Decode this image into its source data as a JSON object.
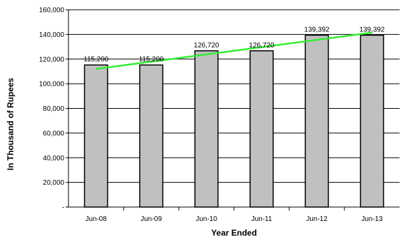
{
  "chart_data": {
    "type": "bar",
    "categories": [
      "Jun-08",
      "Jun-09",
      "Jun-10",
      "Jun-11",
      "Jun-12",
      "Jun-13"
    ],
    "values": [
      115200,
      115200,
      126720,
      126720,
      139392,
      139392
    ],
    "data_labels": [
      "115,200",
      "115,200",
      "126,720",
      "126,720",
      "139,392",
      "139,392"
    ],
    "xlabel": "Year Ended",
    "ylabel": "In Thousand of Rupees",
    "ylim": [
      0,
      160000
    ],
    "yticks": [
      0,
      20000,
      40000,
      60000,
      80000,
      100000,
      120000,
      140000,
      160000
    ],
    "ytick_labels": [
      "-",
      "20,000",
      "40,000",
      "60,000",
      "80,000",
      "100,000",
      "120,000",
      "140,000",
      "160,000"
    ],
    "grid": true,
    "bar_color": "#c0c0c0",
    "trendline": {
      "type": "linear",
      "color": "#33ee33",
      "start": 112000,
      "end": 141500
    }
  }
}
